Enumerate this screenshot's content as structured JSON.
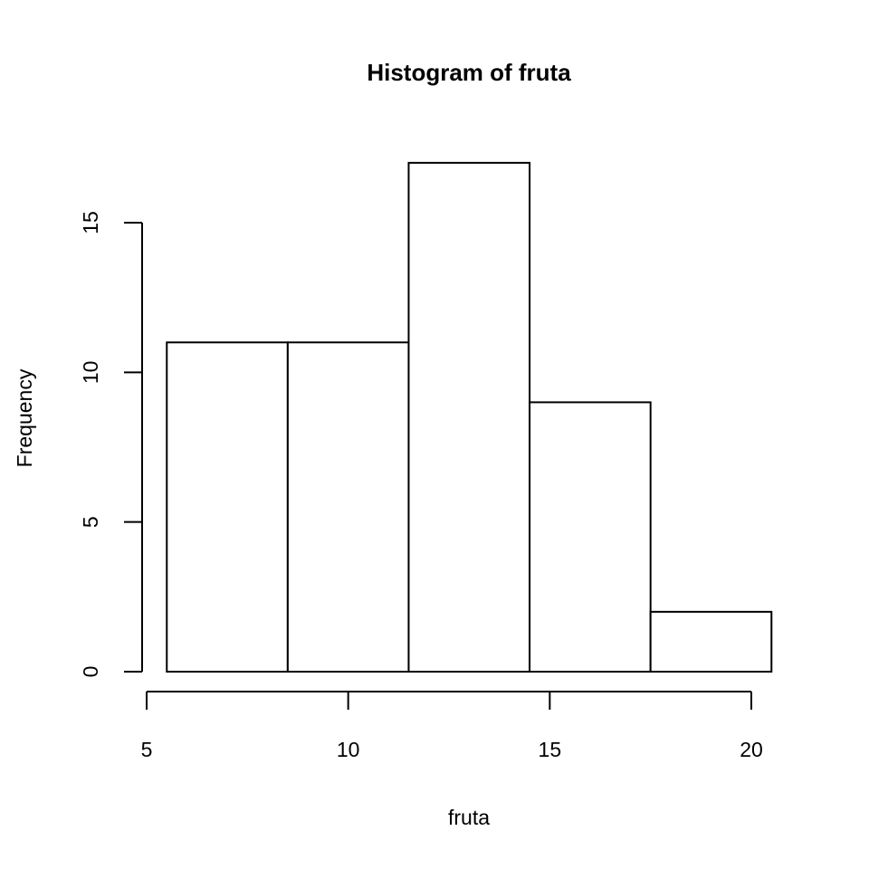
{
  "chart_data": {
    "type": "bar",
    "title": "Histogram of fruta",
    "xlabel": "fruta",
    "ylabel": "Frequency",
    "bins": [
      {
        "start": 5.5,
        "end": 8.5,
        "count": 11
      },
      {
        "start": 8.5,
        "end": 11.5,
        "count": 11
      },
      {
        "start": 11.5,
        "end": 14.5,
        "count": 17
      },
      {
        "start": 14.5,
        "end": 17.5,
        "count": 9
      },
      {
        "start": 17.5,
        "end": 20.5,
        "count": 2
      }
    ],
    "x_ticks": [
      5,
      10,
      15,
      20
    ],
    "y_ticks": [
      0,
      5,
      10,
      15
    ],
    "xlim": [
      5,
      20.5
    ],
    "ylim": [
      0,
      17
    ],
    "grid": false,
    "legend": "none"
  }
}
